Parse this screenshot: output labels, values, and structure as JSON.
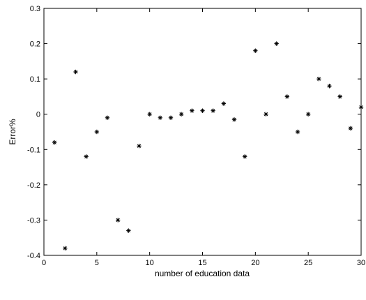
{
  "chart_data": {
    "type": "scatter",
    "marker": "*",
    "xlabel": "number of education data",
    "ylabel": "Error%",
    "xlim": [
      0,
      30
    ],
    "ylim": [
      -0.4,
      0.3
    ],
    "grid": false,
    "xticks": [
      0,
      5,
      10,
      15,
      20,
      25,
      30
    ],
    "yticks": [
      0.3,
      0.2,
      0.1,
      0,
      -0.1,
      -0.2,
      -0.3,
      -0.4
    ],
    "xtick_labels": [
      "0",
      "5",
      "10",
      "15",
      "20",
      "25",
      "30"
    ],
    "ytick_labels": [
      "0.3",
      "0.2",
      "0.1",
      "0",
      "-0.1",
      "-0.2",
      "-0.3",
      "-0.4"
    ],
    "x": [
      1,
      2,
      3,
      4,
      5,
      6,
      7,
      8,
      9,
      10,
      11,
      12,
      13,
      14,
      15,
      16,
      17,
      18,
      19,
      20,
      21,
      22,
      23,
      24,
      25,
      26,
      27,
      28,
      29,
      30
    ],
    "y": [
      -0.08,
      -0.38,
      0.12,
      -0.12,
      -0.05,
      -0.01,
      -0.3,
      -0.33,
      -0.09,
      0.0,
      -0.01,
      -0.01,
      0.0,
      0.01,
      0.01,
      0.01,
      0.03,
      -0.015,
      -0.12,
      0.18,
      0.0,
      0.2,
      0.05,
      -0.05,
      0.0,
      0.1,
      0.08,
      0.05,
      -0.04,
      0.02
    ]
  }
}
